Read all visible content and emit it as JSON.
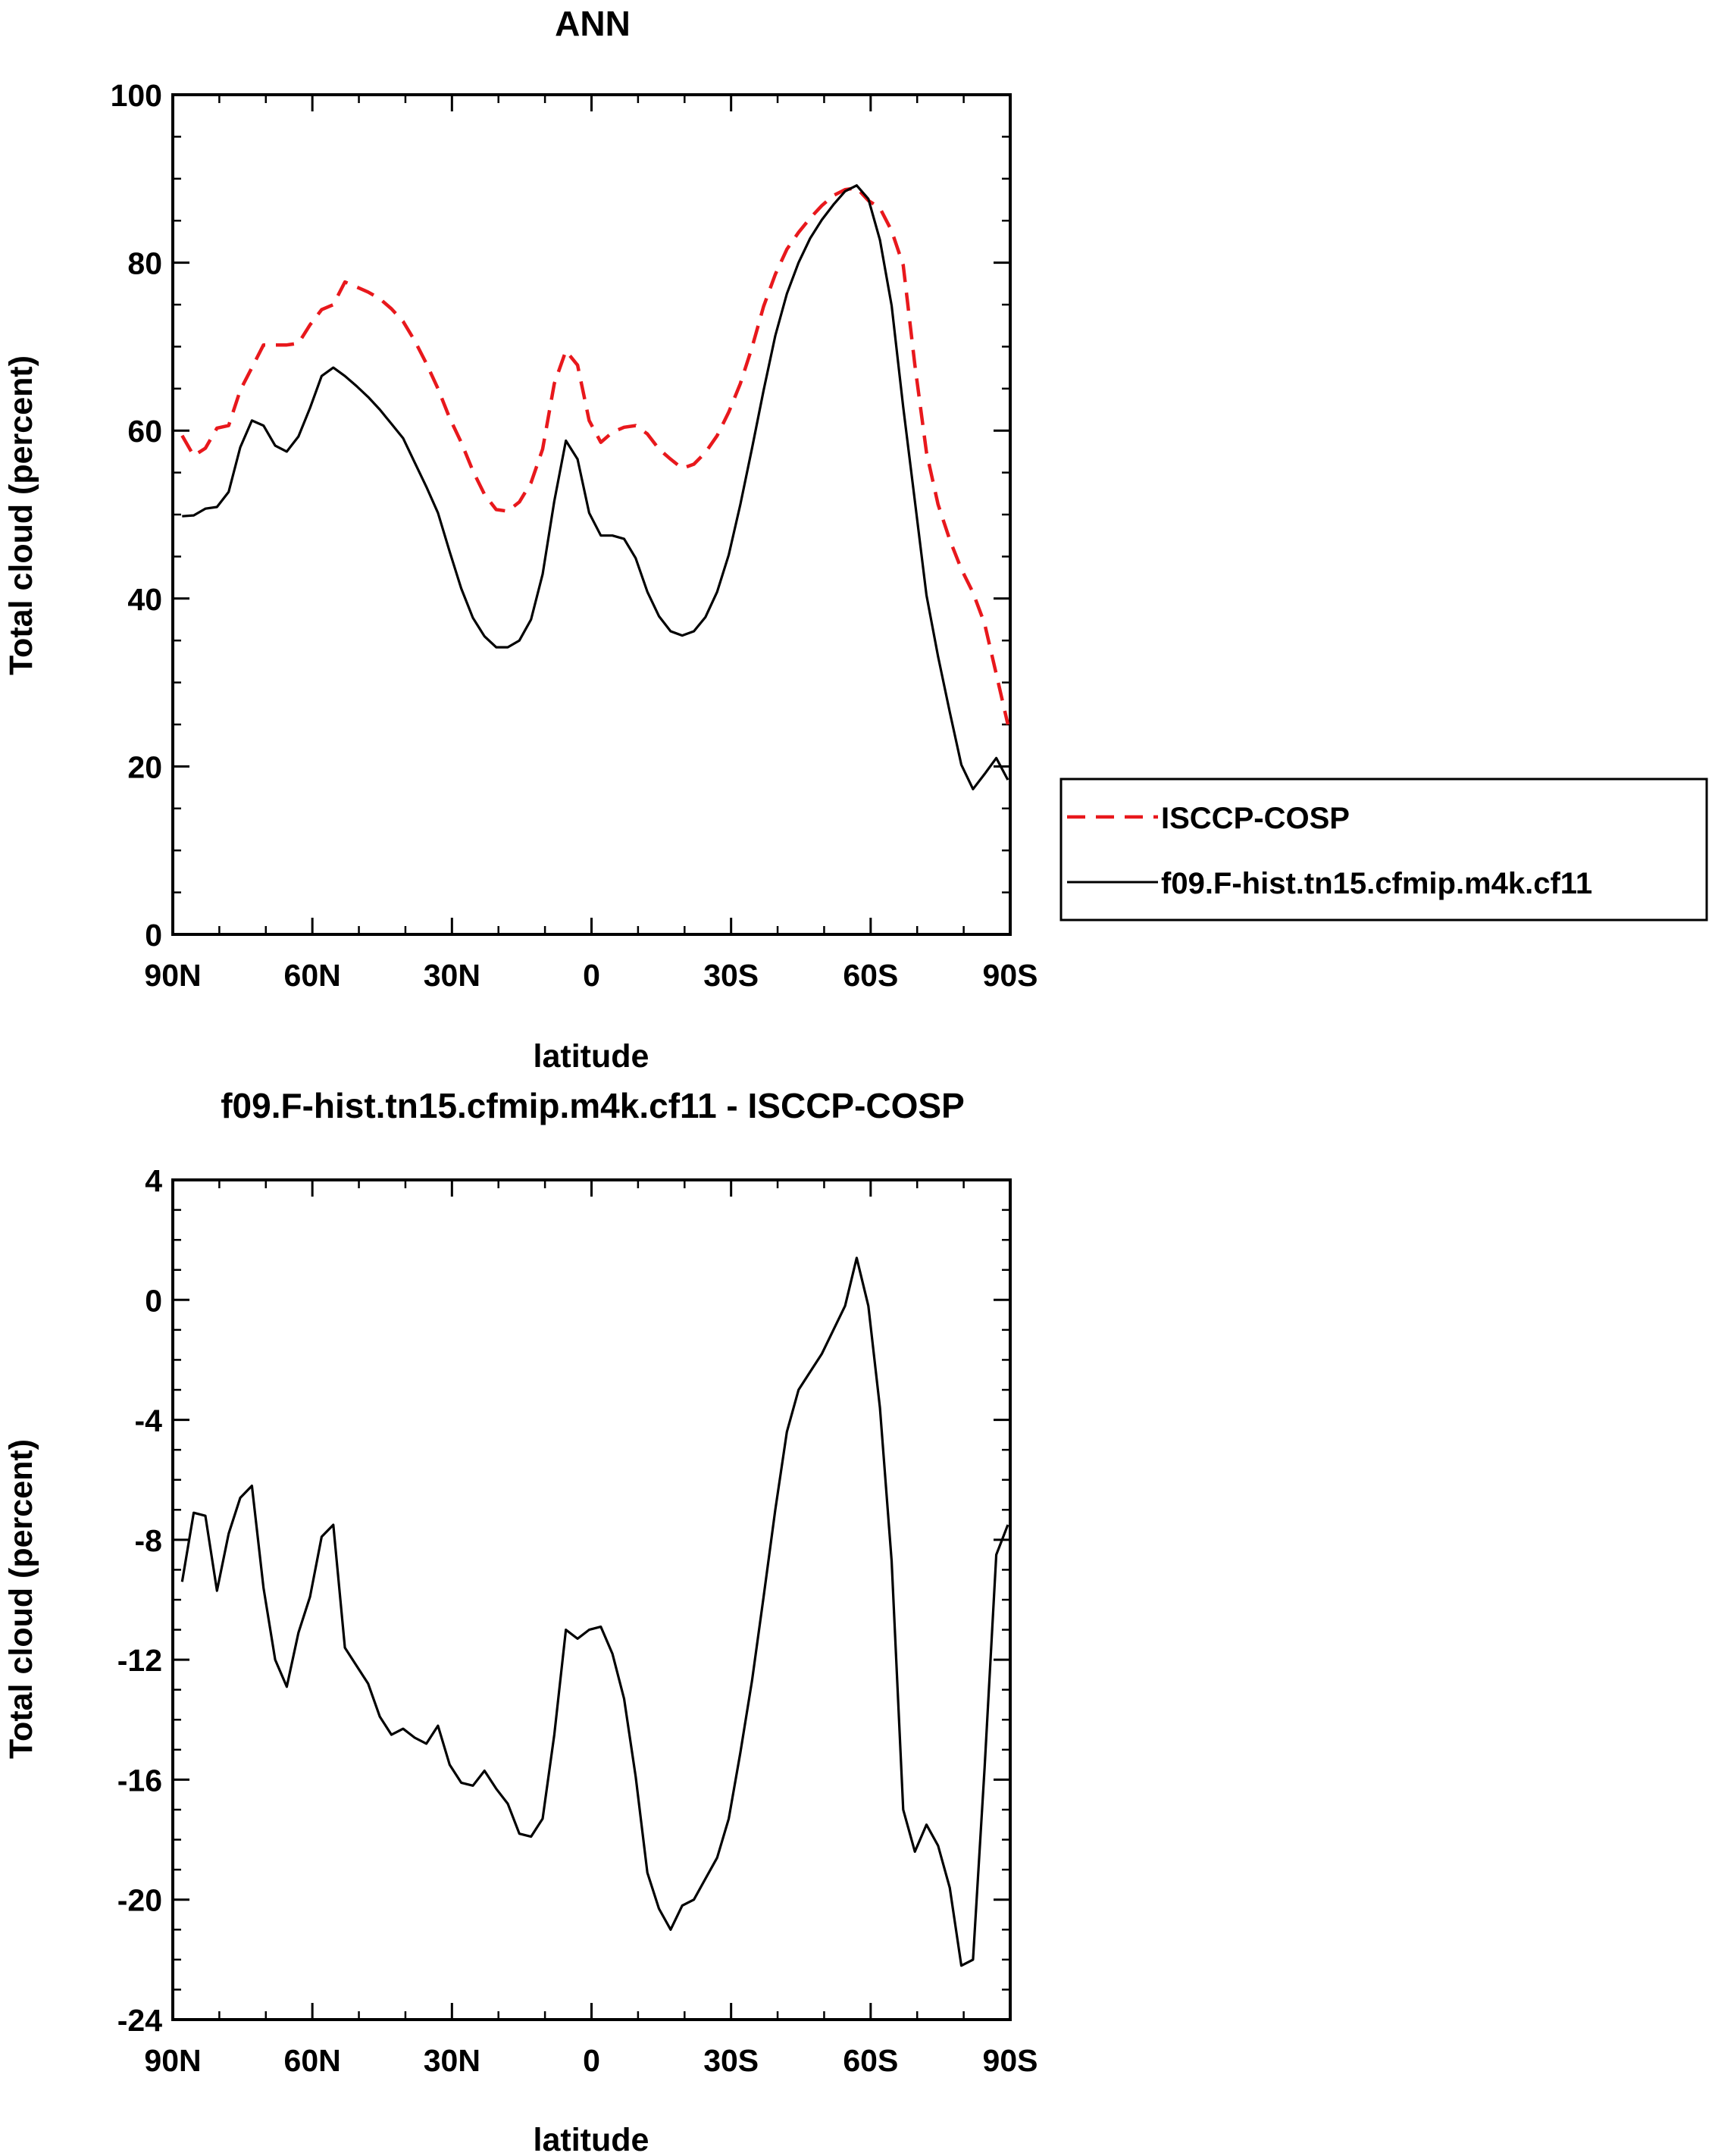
{
  "chart_data": [
    {
      "type": "line",
      "title": "ANN",
      "xlabel": "latitude",
      "ylabel": "Total cloud (percent)",
      "xlim": [
        90,
        -90
      ],
      "ylim": [
        0,
        100
      ],
      "xticks": [
        90,
        60,
        30,
        0,
        -30,
        -60,
        -90
      ],
      "xtick_labels": [
        "90N",
        "60N",
        "30N",
        "0",
        "30S",
        "60S",
        "90S"
      ],
      "yticks": [
        0,
        20,
        40,
        60,
        80,
        100
      ],
      "ytick_labels": [
        "0",
        "20",
        "40",
        "60",
        "80",
        "100"
      ],
      "grid": false,
      "legend_position": "right, outside plot",
      "series": [
        {
          "name": "ISCCP-COSP",
          "color": "#e8181c",
          "dash": "dashed",
          "x": [
            88,
            85.5,
            83,
            80.5,
            78,
            75.5,
            73,
            70.5,
            68,
            65.5,
            63,
            60.5,
            58,
            55.5,
            53,
            50.5,
            48,
            45.5,
            43,
            40.5,
            38,
            35.5,
            33,
            30.5,
            28,
            25.5,
            23,
            20.5,
            18,
            15.5,
            13,
            10.5,
            8,
            5.5,
            3,
            0.5,
            -2,
            -4.5,
            -7,
            -9.5,
            -12,
            -14.5,
            -17,
            -19.5,
            -22,
            -24.5,
            -27,
            -29.5,
            -32,
            -34.5,
            -37,
            -39.5,
            -42,
            -44.5,
            -47,
            -49.5,
            -52,
            -54.5,
            -57,
            -59.5,
            -62,
            -64.5,
            -67,
            -69.5,
            -72,
            -74.5,
            -77,
            -79.5,
            -82,
            -84.5,
            -87,
            -89.5
          ],
          "y": [
            59.4,
            57.0,
            57.9,
            60.3,
            60.6,
            64.8,
            67.5,
            70.2,
            70.2,
            70.2,
            70.4,
            72.6,
            74.4,
            75.0,
            77.7,
            77.1,
            76.5,
            75.7,
            74.5,
            73.0,
            70.7,
            68.0,
            65.0,
            61.5,
            58.6,
            55.2,
            52.4,
            50.6,
            50.4,
            51.5,
            53.8,
            57.8,
            65.6,
            69.5,
            67.8,
            61.2,
            58.6,
            59.8,
            60.4,
            60.6,
            59.6,
            57.8,
            56.6,
            55.5,
            56.0,
            57.4,
            59.4,
            62.2,
            65.6,
            69.9,
            74.8,
            78.6,
            81.6,
            83.6,
            85.3,
            86.8,
            88.0,
            88.7,
            88.9,
            87.4,
            86.5,
            83.8,
            79.7,
            67.8,
            57.4,
            51.2,
            47.0,
            43.5,
            40.7,
            37.0,
            31.0,
            25.0
          ]
        },
        {
          "name": "f09.F-hist.tn15.cfmip.m4k.cf11",
          "color": "#000000",
          "dash": "solid",
          "x": [
            88,
            85.5,
            83,
            80.5,
            78,
            75.5,
            73,
            70.5,
            68,
            65.5,
            63,
            60.5,
            58,
            55.5,
            53,
            50.5,
            48,
            45.5,
            43,
            40.5,
            38,
            35.5,
            33,
            30.5,
            28,
            25.5,
            23,
            20.5,
            18,
            15.5,
            13,
            10.5,
            8,
            5.5,
            3,
            0.5,
            -2,
            -4.5,
            -7,
            -9.5,
            -12,
            -14.5,
            -17,
            -19.5,
            -22,
            -24.5,
            -27,
            -29.5,
            -32,
            -34.5,
            -37,
            -39.5,
            -42,
            -44.5,
            -47,
            -49.5,
            -52,
            -54.5,
            -57,
            -59.5,
            -62,
            -64.5,
            -67,
            -69.5,
            -72,
            -74.5,
            -77,
            -79.5,
            -82,
            -84.5,
            -87,
            -89.5
          ],
          "y": [
            49.8,
            49.9,
            50.7,
            50.9,
            52.7,
            58.0,
            61.2,
            60.6,
            58.2,
            57.5,
            59.3,
            62.7,
            66.5,
            67.5,
            66.5,
            65.3,
            64.0,
            62.5,
            60.8,
            59.1,
            56.2,
            53.3,
            50.2,
            45.6,
            41.2,
            37.7,
            35.5,
            34.2,
            34.2,
            35.0,
            37.5,
            42.9,
            51.6,
            58.8,
            56.6,
            50.2,
            47.5,
            47.5,
            47.1,
            44.8,
            40.8,
            37.9,
            36.1,
            35.6,
            36.1,
            37.8,
            40.8,
            45.2,
            51.2,
            57.9,
            64.8,
            71.3,
            76.3,
            80.0,
            82.9,
            85.1,
            86.9,
            88.5,
            89.2,
            87.6,
            82.7,
            74.9,
            62.8,
            51.6,
            40.4,
            33.1,
            26.5,
            20.2,
            17.3,
            19.1,
            21.0,
            18.4
          ]
        }
      ]
    },
    {
      "type": "line",
      "title": "f09.F-hist.tn15.cfmip.m4k.cf11 - ISCCP-COSP",
      "xlabel": "latitude",
      "ylabel": "Total cloud (percent)",
      "xlim": [
        90,
        -90
      ],
      "ylim": [
        -24,
        4
      ],
      "xticks": [
        90,
        60,
        30,
        0,
        -30,
        -60,
        -90
      ],
      "xtick_labels": [
        "90N",
        "60N",
        "30N",
        "0",
        "30S",
        "60S",
        "90S"
      ],
      "yticks": [
        4,
        0,
        -4,
        -8,
        -12,
        -16,
        -20,
        -24
      ],
      "ytick_labels": [
        "4",
        "0",
        "-4",
        "-8",
        "-12",
        "-16",
        "-20",
        "-24"
      ],
      "grid": false,
      "series": [
        {
          "color": "#000000",
          "dash": "solid",
          "x": [
            88,
            85.5,
            83,
            80.5,
            78,
            75.5,
            73,
            70.5,
            68,
            65.5,
            63,
            60.5,
            58,
            55.5,
            53,
            50.5,
            48,
            45.5,
            43,
            40.5,
            38,
            35.5,
            33,
            30.5,
            28,
            25.5,
            23,
            20.5,
            18,
            15.5,
            13,
            10.5,
            8,
            5.5,
            3,
            0.5,
            -2,
            -4.5,
            -7,
            -9.5,
            -12,
            -14.5,
            -17,
            -19.5,
            -22,
            -24.5,
            -27,
            -29.5,
            -32,
            -34.5,
            -37,
            -39.5,
            -42,
            -44.5,
            -47,
            -49.5,
            -52,
            -54.5,
            -57,
            -59.5,
            -62,
            -64.5,
            -67,
            -69.5,
            -72,
            -74.5,
            -77,
            -79.5,
            -82,
            -84.5,
            -87,
            -89.5
          ],
          "y": [
            -9.4,
            -7.1,
            -7.2,
            -9.7,
            -7.8,
            -6.6,
            -6.2,
            -9.6,
            -12.0,
            -12.9,
            -11.1,
            -9.9,
            -7.9,
            -7.5,
            -11.6,
            -12.2,
            -12.8,
            -13.9,
            -14.5,
            -14.3,
            -14.6,
            -14.8,
            -14.2,
            -15.5,
            -16.1,
            -16.2,
            -15.7,
            -16.3,
            -16.8,
            -17.8,
            -17.9,
            -17.3,
            -14.5,
            -11.0,
            -11.3,
            -11.0,
            -10.9,
            -11.8,
            -13.3,
            -15.9,
            -19.1,
            -20.3,
            -21.0,
            -20.2,
            -20.0,
            -19.3,
            -18.6,
            -17.3,
            -15.1,
            -12.7,
            -9.9,
            -7.0,
            -4.4,
            -3.0,
            -2.4,
            -1.8,
            -1.0,
            -0.2,
            1.4,
            -0.2,
            -3.6,
            -8.7,
            -17.0,
            -18.4,
            -17.5,
            -18.2,
            -19.6,
            -22.2,
            -22.0,
            -15.6,
            -8.5,
            -7.5
          ]
        }
      ]
    }
  ]
}
